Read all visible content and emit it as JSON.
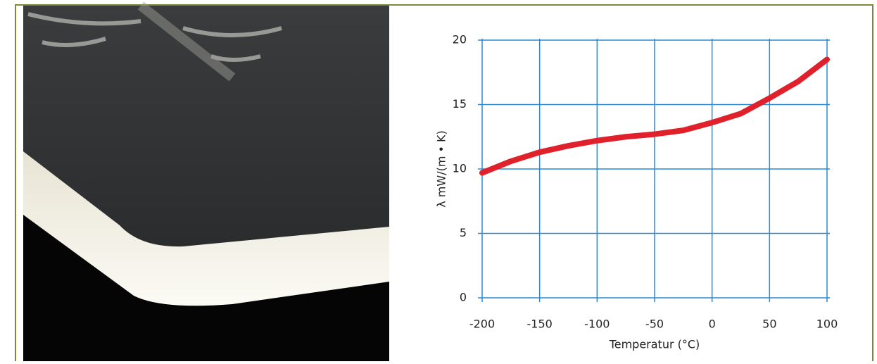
{
  "chart_data": {
    "type": "line",
    "x_label": "Temperatur (°C)",
    "y_label": "λ  mW/(m • K)",
    "x": [
      -200,
      -175,
      -150,
      -125,
      -100,
      -75,
      -50,
      -25,
      0,
      25,
      50,
      75,
      100
    ],
    "series": [
      {
        "color": "#e0202a",
        "values": [
          9.7,
          10.6,
          11.3,
          11.8,
          12.2,
          12.5,
          12.7,
          13.0,
          13.6,
          14.3,
          15.5,
          16.8,
          18.5
        ]
      }
    ],
    "xlim": [
      -200,
      100
    ],
    "xticks": [
      -200,
      -150,
      -100,
      -50,
      0,
      50,
      100
    ],
    "ylim": [
      0,
      20
    ],
    "yticks": [
      0,
      5,
      10,
      15,
      20
    ],
    "grid": true
  }
}
